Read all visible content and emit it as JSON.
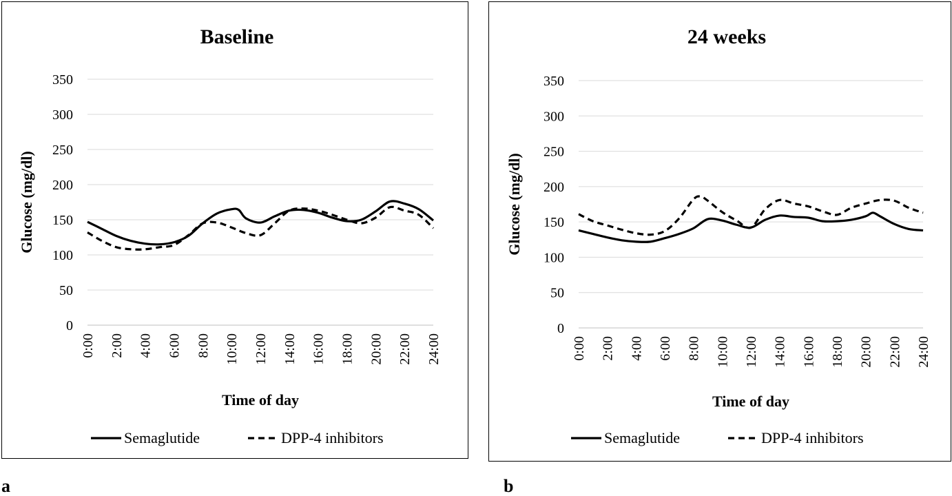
{
  "chart_data": [
    {
      "type": "line",
      "title": "Baseline",
      "xlabel": "Time of day",
      "ylabel": "Glucose (mg/dl)",
      "ylim": [
        0,
        350
      ],
      "yticks": [
        "0",
        "50",
        "100",
        "150",
        "200",
        "250",
        "300",
        "350"
      ],
      "ytick_values": [
        0,
        50,
        100,
        150,
        200,
        250,
        300,
        350
      ],
      "x_tick_labels": [
        "0:00",
        "2:00",
        "4:00",
        "6:00",
        "8:00",
        "10:00",
        "12:00",
        "14:00",
        "16:00",
        "18:00",
        "20:00",
        "22:00",
        "24:00"
      ],
      "grid": true,
      "legend": "bottom",
      "panel_label": "a",
      "series": [
        {
          "name": "Semaglutide",
          "style": "solid",
          "x": [
            0,
            1,
            2,
            3,
            4,
            5,
            6,
            7,
            8,
            9,
            10,
            10.5,
            11,
            12,
            13,
            14,
            15,
            16,
            17,
            18,
            19,
            20,
            21,
            22,
            23,
            24
          ],
          "values": [
            147,
            137,
            127,
            120,
            116,
            115,
            118,
            127,
            145,
            159,
            165,
            164,
            152,
            146,
            155,
            163,
            164,
            160,
            153,
            148,
            150,
            162,
            176,
            173,
            165,
            149
          ]
        },
        {
          "name": "DPP-4 inhibitors",
          "style": "dashed",
          "x": [
            0,
            1,
            2,
            3,
            4,
            5,
            6,
            7,
            8,
            9,
            10,
            11,
            12,
            13,
            14,
            15,
            16,
            17,
            18,
            19,
            20,
            21,
            22,
            23,
            24
          ],
          "values": [
            132,
            120,
            111,
            108,
            108,
            111,
            114,
            128,
            145,
            146,
            139,
            131,
            128,
            145,
            163,
            166,
            163,
            157,
            150,
            145,
            153,
            168,
            163,
            157,
            138
          ]
        }
      ]
    },
    {
      "type": "line",
      "title": "24 weeks",
      "xlabel": "Time of day",
      "ylabel": "Glucose (mg/dl)",
      "ylim": [
        0,
        350
      ],
      "yticks": [
        "0",
        "50",
        "100",
        "150",
        "200",
        "250",
        "300",
        "350"
      ],
      "ytick_values": [
        0,
        50,
        100,
        150,
        200,
        250,
        300,
        350
      ],
      "x_tick_labels": [
        "0:00",
        "2:00",
        "4:00",
        "6:00",
        "8:00",
        "10:00",
        "12:00",
        "14:00",
        "16:00",
        "18:00",
        "20:00",
        "22:00",
        "24:00"
      ],
      "grid": true,
      "legend": "bottom",
      "panel_label": "b",
      "series": [
        {
          "name": "Semaglutide",
          "style": "solid",
          "x": [
            0,
            1,
            2,
            3,
            4,
            5,
            6,
            7,
            8,
            9,
            10,
            11,
            12,
            13,
            14,
            15,
            16,
            17,
            18,
            19,
            20,
            20.5,
            21,
            22,
            23,
            24
          ],
          "values": [
            138,
            133,
            128,
            124,
            122,
            122,
            127,
            133,
            141,
            154,
            152,
            146,
            142,
            153,
            159,
            157,
            156,
            151,
            151,
            153,
            158,
            163,
            158,
            147,
            140,
            138
          ]
        },
        {
          "name": "DPP-4 inhibitors",
          "style": "dashed",
          "x": [
            0,
            1,
            2,
            3,
            4,
            5,
            6,
            7,
            8,
            8.5,
            9,
            10,
            11,
            12,
            13,
            14,
            15,
            16,
            17,
            18,
            19,
            20,
            21,
            22,
            23,
            24
          ],
          "values": [
            161,
            151,
            145,
            139,
            134,
            132,
            137,
            155,
            182,
            186,
            180,
            164,
            152,
            142,
            168,
            181,
            176,
            172,
            165,
            160,
            170,
            176,
            181,
            180,
            170,
            163
          ]
        }
      ]
    }
  ]
}
